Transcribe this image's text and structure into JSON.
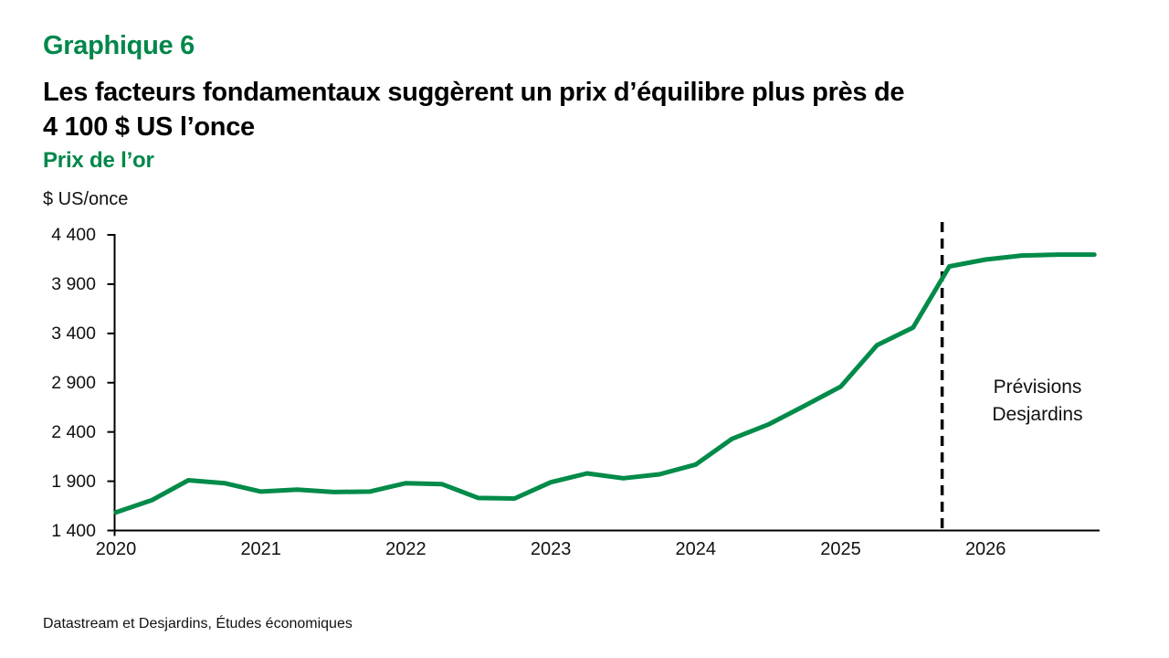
{
  "header": {
    "kicker": "Graphique 6",
    "title_lines": [
      "Les facteurs fondamentaux suggèrent un prix d’équilibre plus près de",
      "4 100 $ US l’once"
    ],
    "subtitle": "Prix de l’or"
  },
  "footer": {
    "source": "Datastream et Desjardins, Études économiques"
  },
  "colors": {
    "accent_green": "#00874a",
    "line_green": "#008b49",
    "axis_black": "#000000"
  },
  "chart_data": {
    "type": "line",
    "title": "Prix de l'or",
    "xlabel": "",
    "ylabel": "$ US/once",
    "ylim": [
      1400,
      4400
    ],
    "grid": "off",
    "legend_position": "none",
    "y_ticks": [
      1400,
      1900,
      2400,
      2900,
      3400,
      3900,
      4400
    ],
    "y_tick_labels": [
      "1 400",
      "1 900",
      "2 400",
      "2 900",
      "3 400",
      "3 900",
      "4 400"
    ],
    "x_tick_years": [
      2020,
      2021,
      2022,
      2023,
      2024,
      2025,
      2026
    ],
    "x_tick_labels": [
      "2020",
      "2021",
      "2022",
      "2023",
      "2024",
      "2025",
      "2026"
    ],
    "xlim_years": [
      2020.0,
      2026.78
    ],
    "series": [
      {
        "name": "Prix de l'or ($ US/once)",
        "color": "#008b49",
        "x": [
          2020.0,
          2020.25,
          2020.5,
          2020.75,
          2021.0,
          2021.25,
          2021.5,
          2021.75,
          2022.0,
          2022.25,
          2022.5,
          2022.75,
          2023.0,
          2023.25,
          2023.5,
          2023.75,
          2024.0,
          2024.25,
          2024.5,
          2024.75,
          2025.0,
          2025.25,
          2025.5,
          2025.75,
          2026.0,
          2026.25,
          2026.5,
          2026.75
        ],
        "values": [
          1585,
          1710,
          1910,
          1880,
          1795,
          1815,
          1790,
          1795,
          1880,
          1870,
          1730,
          1725,
          1890,
          1980,
          1930,
          1970,
          2070,
          2330,
          2475,
          2665,
          2860,
          3280,
          3460,
          4080,
          4150,
          4190,
          4200,
          4200
        ]
      }
    ],
    "annotations": {
      "forecast_label": "Prévisions Desjardins",
      "forecast_divider_year": 2025.7
    }
  }
}
